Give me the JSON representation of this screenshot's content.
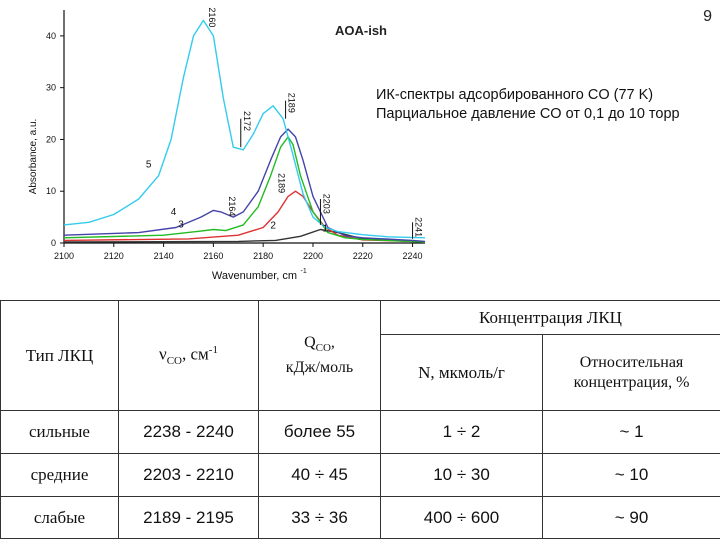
{
  "page_number": "9",
  "chart_data": {
    "type": "line",
    "title": "AOA-ish",
    "xlabel": "Wavenumber, cm",
    "xlabel_sup": "-1",
    "ylabel": "Absorbance, a.u.",
    "xlim": [
      2100,
      2245
    ],
    "ylim": [
      0,
      45
    ],
    "xticks": [
      2100,
      2120,
      2140,
      2160,
      2180,
      2200,
      2220,
      2240
    ],
    "yticks": [
      0,
      10,
      20,
      30,
      40
    ],
    "series": [
      {
        "name": "1",
        "color": "#333333",
        "x": [
          2100,
          2170,
          2185,
          2195,
          2203,
          2210,
          2220,
          2240,
          2245
        ],
        "y": [
          0.2,
          0.3,
          0.5,
          1.3,
          2.6,
          2.0,
          0.8,
          0.3,
          0.2
        ]
      },
      {
        "name": "2",
        "color": "#dd3333",
        "x": [
          2100,
          2150,
          2170,
          2180,
          2186,
          2190,
          2193,
          2196,
          2200,
          2205,
          2210,
          2220,
          2240,
          2245
        ],
        "y": [
          0.5,
          0.8,
          1.5,
          3.0,
          6.0,
          9.0,
          10.0,
          9.0,
          6.0,
          3.0,
          1.5,
          0.6,
          0.3,
          0.2
        ]
      },
      {
        "name": "3",
        "color": "#22bb22",
        "x": [
          2100,
          2140,
          2155,
          2160,
          2165,
          2172,
          2178,
          2183,
          2187,
          2190,
          2192,
          2195,
          2200,
          2206,
          2213,
          2220,
          2240,
          2245
        ],
        "y": [
          1.0,
          1.5,
          2.3,
          2.6,
          2.4,
          3.5,
          7.0,
          13.0,
          18.5,
          20.5,
          19.0,
          13.0,
          6.0,
          2.0,
          1.0,
          0.7,
          0.3,
          0.2
        ]
      },
      {
        "name": "4",
        "color": "#4444aa",
        "x": [
          2100,
          2130,
          2145,
          2155,
          2160,
          2163,
          2168,
          2172,
          2178,
          2183,
          2187,
          2190,
          2193,
          2196,
          2200,
          2206,
          2213,
          2220,
          2240,
          2245
        ],
        "y": [
          1.5,
          2.0,
          3.0,
          5.0,
          6.3,
          6.0,
          5.0,
          6.0,
          10.0,
          16.0,
          20.5,
          22.0,
          20.5,
          16.0,
          9.0,
          3.0,
          1.4,
          1.0,
          0.5,
          0.3
        ]
      },
      {
        "name": "5",
        "color": "#33ccee",
        "x": [
          2100,
          2110,
          2120,
          2130,
          2138,
          2143,
          2148,
          2152,
          2156,
          2160,
          2164,
          2168,
          2172,
          2176,
          2180,
          2184,
          2188,
          2192,
          2196,
          2200,
          2205,
          2210,
          2220,
          2230,
          2245
        ],
        "y": [
          3.5,
          4.0,
          5.5,
          8.5,
          13.0,
          20.0,
          32.0,
          40.0,
          43.0,
          40.0,
          28.0,
          18.5,
          18.0,
          21.0,
          25.0,
          26.5,
          24.0,
          17.0,
          9.5,
          5.0,
          3.0,
          2.2,
          1.6,
          1.2,
          1.0
        ]
      }
    ],
    "series_label_positions": [
      {
        "name": "1",
        "x": 2205,
        "y": 2.2
      },
      {
        "name": "2",
        "x": 2184,
        "y": 2.8
      },
      {
        "name": "3",
        "x": 2147,
        "y": 3.0
      },
      {
        "name": "4",
        "x": 2144,
        "y": 5.4
      },
      {
        "name": "5",
        "x": 2134,
        "y": 14.6
      }
    ],
    "peak_labels": [
      {
        "text": "2160",
        "x": 2157,
        "y": 45.5,
        "mark": false
      },
      {
        "text": "2172",
        "x": 2171,
        "y": 25.5,
        "mark": true,
        "line_from": 18.5,
        "line_to": 24.0
      },
      {
        "text": "2189",
        "x": 2189,
        "y": 29.0,
        "mark": true,
        "line_from": 24.0,
        "line_to": 27.5
      },
      {
        "text": "2189",
        "x": 2185,
        "y": 13.5,
        "mark": false
      },
      {
        "text": "2164",
        "x": 2165,
        "y": 9.0,
        "mark": false
      },
      {
        "text": "2203",
        "x": 2203,
        "y": 9.5,
        "mark": true,
        "line_from": 3.5,
        "line_to": 8.5
      },
      {
        "text": "2241",
        "x": 2240,
        "y": 5.0,
        "mark": true,
        "line_from": 0.8,
        "line_to": 4.0
      }
    ]
  },
  "caption": {
    "line1": "ИК-спектры адсорбированного CO (77 K)",
    "line2": "Парциальное давление CO от 0,1 до 10 торр"
  },
  "table": {
    "group_header": "Концентрация ЛКЦ",
    "col_type": "Тип ЛКЦ",
    "col_nu_main": "ν",
    "col_nu_sub": "CO",
    "col_nu_unit": ", см",
    "col_nu_sup": "-1",
    "col_q_main": "Q",
    "col_q_sub": "CO",
    "col_q_comma": ",",
    "col_q_unit": "кДж/моль",
    "col_n": "N, мкмоль/г",
    "col_rel": "Относительная концентрация, %",
    "rows": [
      {
        "type": "сильные",
        "nu": "2238 - 2240",
        "q": "более 55",
        "n": "1 ÷ 2",
        "rel": "~ 1"
      },
      {
        "type": "средние",
        "nu": "2203 - 2210",
        "q": "40 ÷ 45",
        "n": "10 ÷ 30",
        "rel": "~ 10"
      },
      {
        "type": "слабые",
        "nu": "2189 - 2195",
        "q": "33 ÷ 36",
        "n": "400 ÷ 600",
        "rel": "~ 90"
      }
    ]
  }
}
